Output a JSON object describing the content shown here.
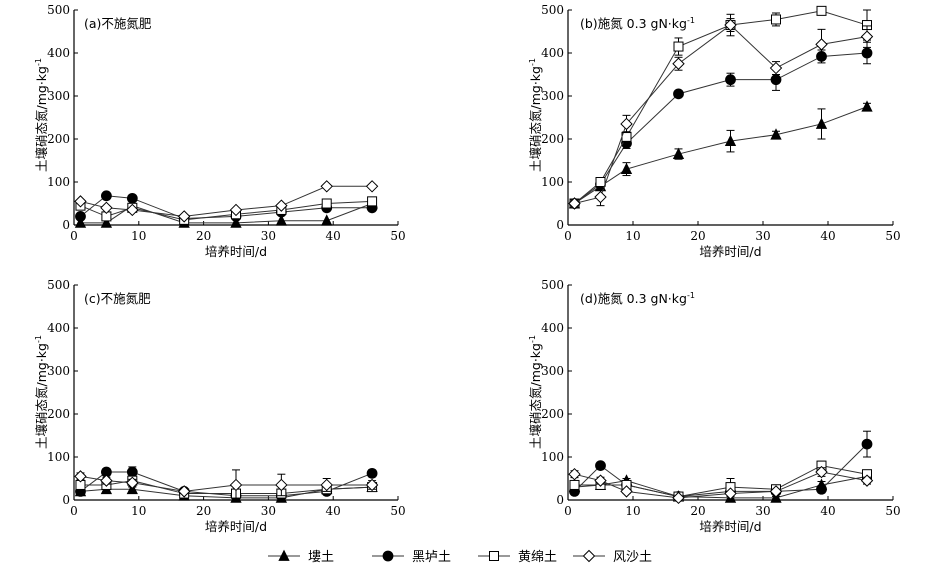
{
  "colors": {
    "ink": "#000000",
    "line": "#333333",
    "background": "#ffffff"
  },
  "legend": [
    {
      "label": "塿土",
      "marker": "triangle-filled"
    },
    {
      "label": "黑垆土",
      "marker": "circle-filled"
    },
    {
      "label": "黄绵土",
      "marker": "square-open"
    },
    {
      "label": "风沙土",
      "marker": "diamond-open"
    }
  ],
  "chart_data": [
    {
      "id": "a",
      "type": "line",
      "title": "(a)不施氮肥",
      "title_superscript": "",
      "xlabel": "培养时间/d",
      "ylabel": "土壤硝态氮/mg·kg",
      "ylabel_superscript": "-1",
      "xlim": [
        0,
        50
      ],
      "ylim": [
        0,
        500
      ],
      "xticks": [
        0,
        10,
        20,
        30,
        40,
        50
      ],
      "yticks": [
        0,
        100,
        200,
        300,
        400,
        500
      ],
      "x": [
        1,
        5,
        9,
        17,
        25,
        32,
        39,
        46
      ],
      "series": [
        {
          "name": "塿土",
          "marker": "triangle-filled",
          "values": [
            5,
            5,
            45,
            5,
            5,
            10,
            10,
            50
          ],
          "errors": [
            0,
            0,
            0,
            0,
            0,
            0,
            0,
            0
          ]
        },
        {
          "name": "黑垆土",
          "marker": "circle-filled",
          "values": [
            20,
            68,
            62,
            15,
            20,
            30,
            40,
            40
          ],
          "errors": [
            0,
            0,
            0,
            0,
            0,
            0,
            0,
            0
          ]
        },
        {
          "name": "黄绵土",
          "marker": "square-open",
          "values": [
            45,
            20,
            40,
            12,
            25,
            35,
            50,
            55
          ],
          "errors": [
            0,
            0,
            0,
            0,
            0,
            0,
            0,
            0
          ]
        },
        {
          "name": "风沙土",
          "marker": "diamond-open",
          "values": [
            55,
            40,
            35,
            20,
            35,
            45,
            90,
            90
          ],
          "errors": [
            0,
            0,
            0,
            0,
            0,
            0,
            0,
            0
          ]
        }
      ]
    },
    {
      "id": "b",
      "type": "line",
      "title": "(b)施氮 0.3 gN·kg",
      "title_superscript": "-1",
      "xlabel": "培养时间/d",
      "ylabel": "土壤硝态氮/mg·kg",
      "ylabel_superscript": "-1",
      "xlim": [
        0,
        50
      ],
      "ylim": [
        0,
        500
      ],
      "xticks": [
        0,
        10,
        20,
        30,
        40,
        50
      ],
      "yticks": [
        0,
        100,
        200,
        300,
        400,
        500
      ],
      "x": [
        1,
        5,
        9,
        17,
        25,
        32,
        39,
        46
      ],
      "series": [
        {
          "name": "塿土",
          "marker": "triangle-filled",
          "values": [
            50,
            90,
            130,
            165,
            195,
            210,
            235,
            275
          ],
          "errors": [
            5,
            8,
            15,
            12,
            25,
            8,
            35,
            8
          ]
        },
        {
          "name": "黑垆土",
          "marker": "circle-filled",
          "values": [
            50,
            95,
            190,
            305,
            338,
            338,
            392,
            400
          ],
          "errors": [
            5,
            8,
            12,
            5,
            15,
            25,
            15,
            25
          ]
        },
        {
          "name": "黄绵土",
          "marker": "square-open",
          "values": [
            50,
            100,
            205,
            415,
            465,
            478,
            498,
            465
          ],
          "errors": [
            5,
            8,
            12,
            20,
            15,
            15,
            5,
            35
          ]
        },
        {
          "name": "风沙土",
          "marker": "diamond-open",
          "values": [
            50,
            65,
            235,
            375,
            465,
            365,
            420,
            438
          ],
          "errors": [
            8,
            20,
            20,
            15,
            25,
            15,
            35,
            25
          ]
        }
      ]
    },
    {
      "id": "c",
      "type": "line",
      "title": "(c)不施氮肥",
      "title_superscript": "",
      "xlabel": "培养时间/d",
      "ylabel": "土壤硝态氮/mg·kg",
      "ylabel_superscript": "-1",
      "xlim": [
        0,
        50
      ],
      "ylim": [
        0,
        500
      ],
      "xticks": [
        0,
        10,
        20,
        30,
        40,
        50
      ],
      "yticks": [
        0,
        100,
        200,
        300,
        400,
        500
      ],
      "x": [
        1,
        5,
        9,
        17,
        25,
        32,
        39,
        46
      ],
      "series": [
        {
          "name": "塿土",
          "marker": "triangle-filled",
          "values": [
            20,
            25,
            25,
            10,
            5,
            5,
            25,
            30
          ],
          "errors": [
            5,
            5,
            5,
            3,
            3,
            3,
            5,
            5
          ]
        },
        {
          "name": "黑垆土",
          "marker": "circle-filled",
          "values": [
            20,
            65,
            65,
            20,
            10,
            10,
            20,
            62
          ],
          "errors": [
            5,
            8,
            12,
            5,
            5,
            5,
            5,
            8
          ]
        },
        {
          "name": "黄绵土",
          "marker": "square-open",
          "values": [
            35,
            35,
            45,
            15,
            15,
            15,
            25,
            30
          ],
          "errors": [
            5,
            5,
            8,
            5,
            5,
            5,
            8,
            8
          ]
        },
        {
          "name": "风沙土",
          "marker": "diamond-open",
          "values": [
            55,
            45,
            40,
            20,
            35,
            35,
            35,
            35
          ],
          "errors": [
            8,
            8,
            8,
            5,
            35,
            25,
            15,
            10
          ]
        }
      ]
    },
    {
      "id": "d",
      "type": "line",
      "title": "(d)施氮 0.3 gN·kg",
      "title_superscript": "-1",
      "xlabel": "培养时间/d",
      "ylabel": "土壤硝态氮/mg·kg",
      "ylabel_superscript": "-1",
      "xlim": [
        0,
        50
      ],
      "ylim": [
        0,
        500
      ],
      "xticks": [
        0,
        10,
        20,
        30,
        40,
        50
      ],
      "yticks": [
        0,
        100,
        200,
        300,
        400,
        500
      ],
      "x": [
        1,
        5,
        9,
        17,
        25,
        32,
        39,
        46
      ],
      "series": [
        {
          "name": "塿土",
          "marker": "triangle-filled",
          "values": [
            30,
            35,
            45,
            8,
            5,
            5,
            35,
            55
          ],
          "errors": [
            5,
            5,
            5,
            3,
            3,
            3,
            8,
            8
          ]
        },
        {
          "name": "黑垆土",
          "marker": "circle-filled",
          "values": [
            20,
            80,
            35,
            8,
            20,
            20,
            25,
            130
          ],
          "errors": [
            5,
            5,
            8,
            3,
            5,
            5,
            8,
            30
          ]
        },
        {
          "name": "黄绵土",
          "marker": "square-open",
          "values": [
            35,
            35,
            35,
            8,
            30,
            25,
            80,
            60
          ],
          "errors": [
            5,
            5,
            5,
            3,
            20,
            5,
            10,
            8
          ]
        },
        {
          "name": "风沙土",
          "marker": "diamond-open",
          "values": [
            60,
            45,
            20,
            5,
            15,
            20,
            65,
            45
          ],
          "errors": [
            8,
            8,
            5,
            3,
            5,
            5,
            10,
            8
          ]
        }
      ]
    }
  ]
}
